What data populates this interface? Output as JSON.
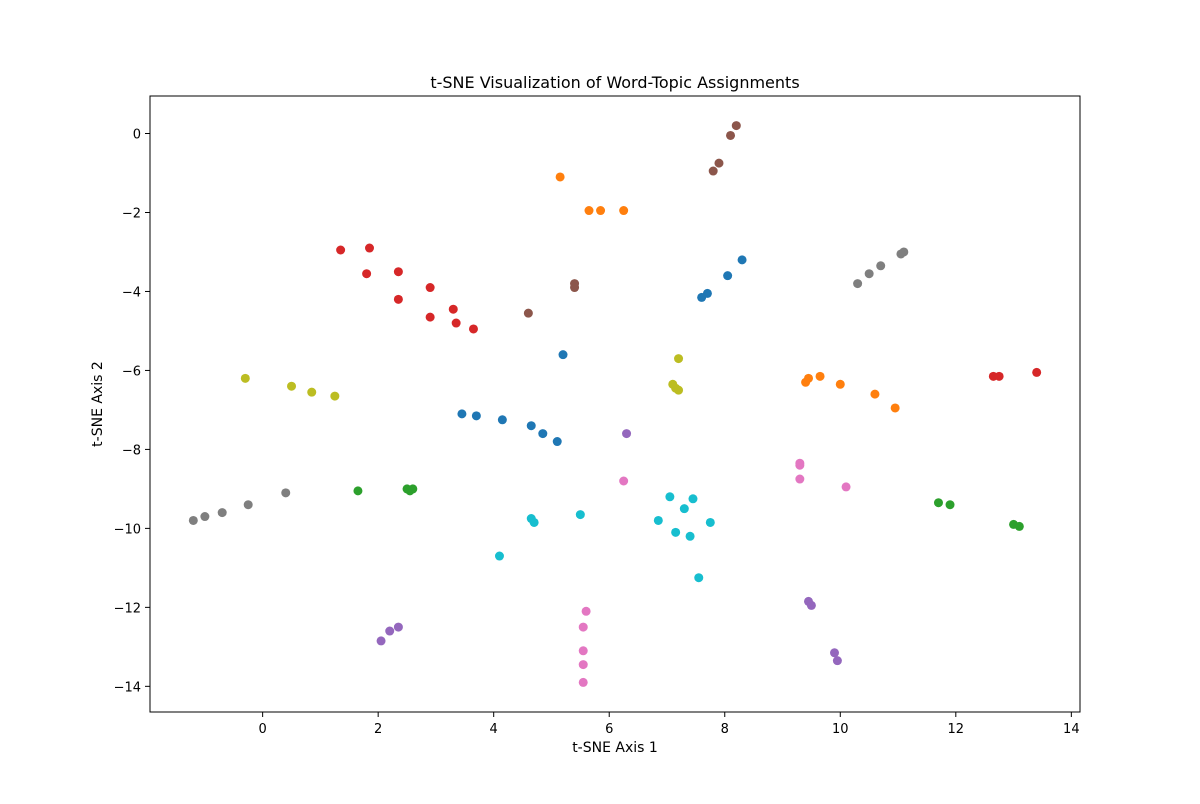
{
  "chart_data": {
    "type": "scatter",
    "title": "t-SNE Visualization of Word-Topic Assignments",
    "xlabel": "t-SNE Axis 1",
    "ylabel": "t-SNE Axis 2",
    "xlim": [
      -1.95,
      14.15
    ],
    "ylim": [
      -14.65,
      0.95
    ],
    "xticks": [
      0,
      2,
      4,
      6,
      8,
      10,
      12,
      14
    ],
    "yticks": [
      0,
      -2,
      -4,
      -6,
      -8,
      -10,
      -12,
      -14
    ],
    "grid": false,
    "legend": "none",
    "series": [
      {
        "color": "#1f77b4",
        "points": [
          [
            8.3,
            -3.2
          ],
          [
            8.05,
            -3.6
          ],
          [
            7.7,
            -4.05
          ],
          [
            7.6,
            -4.15
          ],
          [
            5.2,
            -5.6
          ],
          [
            3.45,
            -7.1
          ],
          [
            3.7,
            -7.15
          ],
          [
            4.15,
            -7.25
          ],
          [
            4.65,
            -7.4
          ],
          [
            4.85,
            -7.6
          ],
          [
            5.1,
            -7.8
          ]
        ]
      },
      {
        "color": "#ff7f0e",
        "points": [
          [
            5.15,
            -1.1
          ],
          [
            5.65,
            -1.95
          ],
          [
            5.85,
            -1.95
          ],
          [
            6.25,
            -1.95
          ],
          [
            9.4,
            -6.3
          ],
          [
            9.45,
            -6.2
          ],
          [
            9.65,
            -6.15
          ],
          [
            10.0,
            -6.35
          ],
          [
            10.6,
            -6.6
          ],
          [
            10.95,
            -6.95
          ]
        ]
      },
      {
        "color": "#2ca02c",
        "points": [
          [
            1.65,
            -9.05
          ],
          [
            2.5,
            -9.0
          ],
          [
            2.55,
            -9.05
          ],
          [
            2.6,
            -9.0
          ],
          [
            11.7,
            -9.35
          ],
          [
            11.9,
            -9.4
          ],
          [
            13.0,
            -9.9
          ],
          [
            13.1,
            -9.95
          ]
        ]
      },
      {
        "color": "#d62728",
        "points": [
          [
            1.35,
            -2.95
          ],
          [
            1.85,
            -2.9
          ],
          [
            1.8,
            -3.55
          ],
          [
            2.35,
            -3.5
          ],
          [
            2.35,
            -4.2
          ],
          [
            2.9,
            -3.9
          ],
          [
            2.9,
            -4.65
          ],
          [
            3.3,
            -4.45
          ],
          [
            3.35,
            -4.8
          ],
          [
            3.65,
            -4.95
          ],
          [
            12.65,
            -6.15
          ],
          [
            12.75,
            -6.15
          ],
          [
            13.4,
            -6.05
          ]
        ]
      },
      {
        "color": "#9467bd",
        "points": [
          [
            6.3,
            -7.6
          ],
          [
            2.05,
            -12.85
          ],
          [
            2.2,
            -12.6
          ],
          [
            2.35,
            -12.5
          ],
          [
            9.45,
            -11.85
          ],
          [
            9.5,
            -11.95
          ],
          [
            9.9,
            -13.15
          ],
          [
            9.95,
            -13.35
          ]
        ]
      },
      {
        "color": "#8c564b",
        "points": [
          [
            8.2,
            0.2
          ],
          [
            8.1,
            -0.05
          ],
          [
            7.9,
            -0.75
          ],
          [
            7.8,
            -0.95
          ],
          [
            5.4,
            -3.8
          ],
          [
            5.4,
            -3.9
          ],
          [
            4.6,
            -4.55
          ]
        ]
      },
      {
        "color": "#e377c2",
        "points": [
          [
            6.25,
            -8.8
          ],
          [
            9.3,
            -8.35
          ],
          [
            9.3,
            -8.4
          ],
          [
            9.3,
            -8.75
          ],
          [
            10.1,
            -8.95
          ],
          [
            5.6,
            -12.1
          ],
          [
            5.55,
            -12.5
          ],
          [
            5.55,
            -13.1
          ],
          [
            5.55,
            -13.45
          ],
          [
            5.55,
            -13.9
          ]
        ]
      },
      {
        "color": "#7f7f7f",
        "points": [
          [
            11.1,
            -3.0
          ],
          [
            11.05,
            -3.05
          ],
          [
            10.7,
            -3.35
          ],
          [
            10.5,
            -3.55
          ],
          [
            10.3,
            -3.8
          ],
          [
            0.4,
            -9.1
          ],
          [
            -0.25,
            -9.4
          ],
          [
            -0.7,
            -9.6
          ],
          [
            -1.0,
            -9.7
          ],
          [
            -1.2,
            -9.8
          ]
        ]
      },
      {
        "color": "#bcbd22",
        "points": [
          [
            -0.3,
            -6.2
          ],
          [
            0.5,
            -6.4
          ],
          [
            0.85,
            -6.55
          ],
          [
            1.25,
            -6.65
          ],
          [
            7.2,
            -5.7
          ],
          [
            7.1,
            -6.35
          ],
          [
            7.15,
            -6.45
          ],
          [
            7.2,
            -6.5
          ]
        ]
      },
      {
        "color": "#17becf",
        "points": [
          [
            7.05,
            -9.2
          ],
          [
            7.45,
            -9.25
          ],
          [
            7.3,
            -9.5
          ],
          [
            6.85,
            -9.8
          ],
          [
            7.75,
            -9.85
          ],
          [
            7.15,
            -10.1
          ],
          [
            7.4,
            -10.2
          ],
          [
            7.55,
            -11.25
          ],
          [
            5.5,
            -9.65
          ],
          [
            4.65,
            -9.75
          ],
          [
            4.7,
            -9.85
          ],
          [
            4.1,
            -10.7
          ]
        ]
      }
    ]
  }
}
